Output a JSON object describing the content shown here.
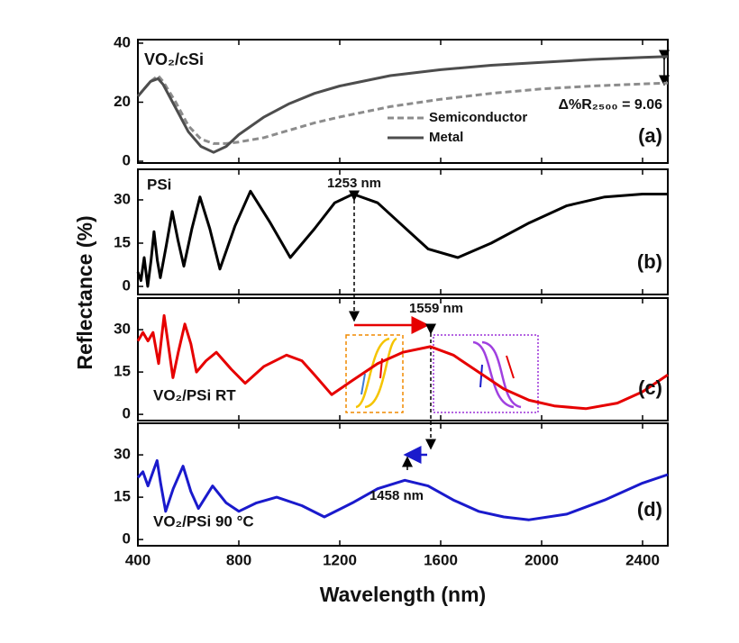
{
  "chart_data": [
    {
      "type": "line",
      "xlim": [
        400,
        2500
      ],
      "ylim": [
        -0.6,
        41.2
      ],
      "yticks": [
        0,
        20,
        40
      ],
      "x": [
        400,
        450,
        480,
        500,
        550,
        600,
        650,
        700,
        750,
        800,
        900,
        1000,
        1100,
        1200,
        1400,
        1600,
        1800,
        2000,
        2200,
        2400,
        2500
      ],
      "series": [
        {
          "name": "Semiconductor",
          "color": "#8c8c8c",
          "style": "dashed",
          "values": [
            22,
            27,
            29,
            27,
            20,
            12,
            7.5,
            6,
            6,
            6.5,
            8,
            10.5,
            13,
            15,
            18.5,
            21,
            23,
            24.5,
            25.5,
            26.2,
            26.5
          ]
        },
        {
          "name": "Metal",
          "color": "#4d4d4d",
          "style": "solid",
          "values": [
            22,
            27,
            28,
            26,
            18,
            10,
            5,
            3,
            5,
            9,
            15,
            19.5,
            23,
            25.5,
            29,
            31,
            32.5,
            33.5,
            34.5,
            35.2,
            35.5
          ]
        }
      ],
      "annotations": [
        "VO₂/cSi",
        "Δ%R₂₅₀₀ = 9.06",
        "(a)"
      ]
    },
    {
      "type": "line",
      "xlim": [
        400,
        2500
      ],
      "ylim": [
        -2.8,
        40.6
      ],
      "yticks": [
        0,
        15,
        30
      ],
      "x": [
        400,
        412,
        425,
        439,
        452,
        464,
        477,
        489,
        512,
        536,
        559,
        582,
        614,
        646,
        685,
        725,
        785,
        846,
        925,
        1004,
        1100,
        1180,
        1253,
        1350,
        1450,
        1550,
        1668,
        1800,
        1950,
        2100,
        2250,
        2400,
        2500
      ],
      "series": [
        {
          "color": "#000000",
          "style": "solid",
          "values": [
            5,
            2,
            10,
            0,
            9,
            19,
            9,
            3,
            14,
            26,
            16,
            7,
            20,
            31,
            20,
            6,
            21,
            33,
            22,
            10,
            20,
            29,
            32,
            29,
            21,
            13,
            10,
            15,
            22,
            28,
            31,
            32,
            32
          ]
        }
      ],
      "annotations": [
        "PSi",
        "1253 nm",
        "(b)"
      ]
    },
    {
      "type": "line",
      "xlim": [
        400,
        2500
      ],
      "ylim": [
        -2.2,
        41.2
      ],
      "yticks": [
        0,
        15,
        30
      ],
      "x": [
        400,
        420,
        440,
        460,
        482,
        504,
        520,
        539,
        560,
        586,
        610,
        632,
        670,
        711,
        770,
        825,
        900,
        989,
        1050,
        1100,
        1168,
        1250,
        1350,
        1450,
        1559,
        1650,
        1750,
        1850,
        1950,
        2050,
        2175,
        2300,
        2400,
        2500
      ],
      "series": [
        {
          "color": "#e60000",
          "style": "solid",
          "values": [
            26,
            29,
            26,
            29,
            18,
            35,
            25,
            13,
            22,
            32,
            25,
            15,
            19,
            22,
            16,
            11,
            17,
            21,
            19,
            14,
            7,
            12,
            18,
            22,
            24,
            21,
            15,
            9,
            5,
            3,
            2,
            4,
            8,
            14
          ]
        }
      ],
      "annotations": [
        "1559 nm",
        "VO₂/PSi  RT",
        "(c)"
      ]
    },
    {
      "type": "line",
      "xlim": [
        400,
        2500
      ],
      "ylim": [
        -2.2,
        41.2
      ],
      "yticks": [
        0,
        15,
        30
      ],
      "xticks": [
        400,
        800,
        1200,
        1600,
        2000,
        2400
      ],
      "x": [
        400,
        420,
        440,
        460,
        476,
        490,
        510,
        540,
        579,
        610,
        640,
        696,
        750,
        800,
        870,
        950,
        1050,
        1139,
        1250,
        1350,
        1458,
        1550,
        1650,
        1750,
        1850,
        1950,
        2100,
        2250,
        2400,
        2500
      ],
      "series": [
        {
          "color": "#1a1acc",
          "style": "solid",
          "values": [
            22,
            24,
            19,
            24,
            28,
            20,
            10,
            18,
            26,
            17,
            11,
            19,
            13,
            10,
            13,
            15,
            12,
            8,
            13,
            18,
            21,
            19,
            14,
            10,
            8,
            7,
            9,
            14,
            20,
            23
          ]
        }
      ],
      "annotations": [
        "1458 nm",
        "VO₂/PSi  90 °C",
        "(d)"
      ],
      "xlabel": "Wavelength (nm)",
      "ylabel": "Reflectance (%)"
    }
  ]
}
